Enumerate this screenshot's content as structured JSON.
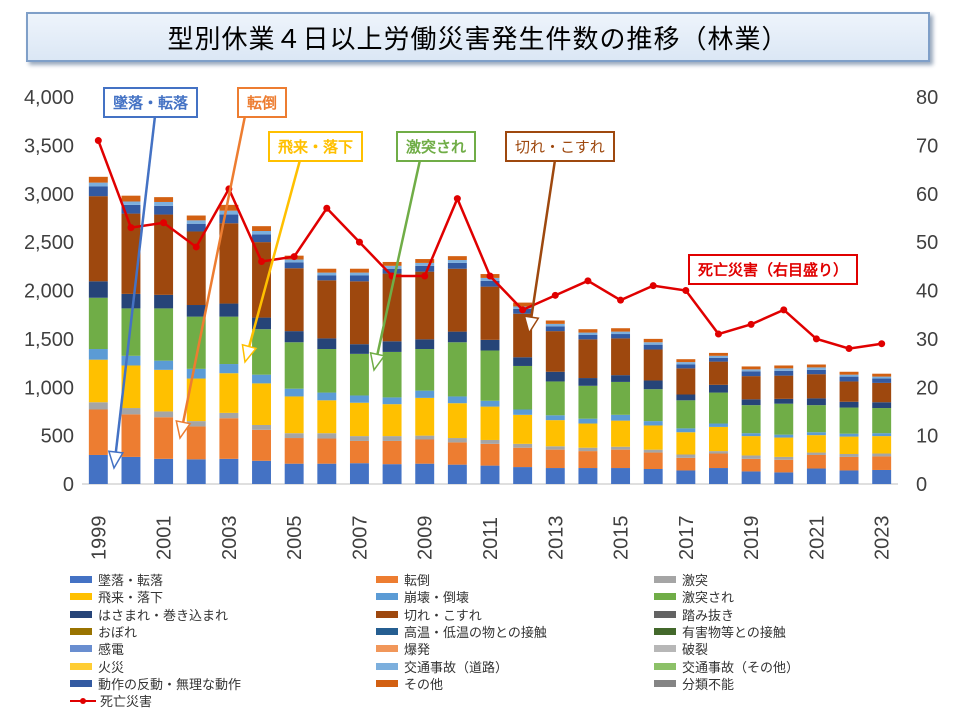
{
  "title": "型別休業４日以上労働災害発生件数の推移（林業）",
  "callouts": {
    "fall": "墜落・転落",
    "tumble": "転倒",
    "flying": "飛来・落下",
    "collision": "激突され",
    "cut": "切れ・こすれ",
    "fatal": "死亡災害（右目盛り）"
  },
  "colors": {
    "fall": "#4472c4",
    "tumble": "#ed7d31",
    "collide": "#a5a5a5",
    "flying": "#ffc000",
    "collapse": "#5b9bd5",
    "struck": "#70ad47",
    "caught": "#264478",
    "cut": "#9e480e",
    "stepon": "#636363",
    "drown": "#997300",
    "temp": "#255e91",
    "harmful": "#43682b",
    "electric": "#698ed0",
    "explosion": "#f1975a",
    "rupture": "#b7b7b7",
    "fire": "#ffcd33",
    "traffic_road": "#7cafdd",
    "traffic_other": "#8cc168",
    "reaction": "#335aa1",
    "other": "#d26012",
    "unclassified": "#848484",
    "fatal": "#e00000"
  },
  "legend": [
    {
      "key": "fall",
      "label": "墜落・転落"
    },
    {
      "key": "tumble",
      "label": "転倒"
    },
    {
      "key": "collide",
      "label": "激突"
    },
    {
      "key": "flying",
      "label": "飛来・落下"
    },
    {
      "key": "collapse",
      "label": "崩壊・倒壊"
    },
    {
      "key": "struck",
      "label": "激突され"
    },
    {
      "key": "caught",
      "label": "はさまれ・巻き込まれ"
    },
    {
      "key": "cut",
      "label": "切れ・こすれ"
    },
    {
      "key": "stepon",
      "label": "踏み抜き"
    },
    {
      "key": "drown",
      "label": "おぼれ"
    },
    {
      "key": "temp",
      "label": "高温・低温の物との接触"
    },
    {
      "key": "harmful",
      "label": "有害物等との接触"
    },
    {
      "key": "electric",
      "label": "感電"
    },
    {
      "key": "explosion",
      "label": "爆発"
    },
    {
      "key": "rupture",
      "label": "破裂"
    },
    {
      "key": "fire",
      "label": "火災"
    },
    {
      "key": "traffic_road",
      "label": "交通事故（道路）"
    },
    {
      "key": "traffic_other",
      "label": "交通事故（その他）"
    },
    {
      "key": "reaction",
      "label": "動作の反動・無理な動作"
    },
    {
      "key": "other",
      "label": "その他"
    },
    {
      "key": "unclassified",
      "label": "分類不能"
    },
    {
      "key": "fatal",
      "label": "死亡災害",
      "type": "line"
    }
  ],
  "chart_data": {
    "type": "bar",
    "stacked": true,
    "title": "型別休業４日以上労働災害発生件数の推移（林業）",
    "categories": [
      "1999",
      "2000",
      "2001",
      "2002",
      "2003",
      "2004",
      "2005",
      "2006",
      "2007",
      "2008",
      "2009",
      "2010",
      "2011",
      "2012",
      "2013",
      "2014",
      "2015",
      "2016",
      "2017",
      "2018",
      "2019",
      "2020",
      "2021",
      "2022",
      "2023"
    ],
    "x_tick_labels": [
      "1999",
      "2001",
      "2003",
      "2005",
      "2007",
      "2009",
      "2011",
      "2013",
      "2015",
      "2017",
      "2019",
      "2021",
      "2023"
    ],
    "ylim_left": [
      0,
      4000
    ],
    "yticks_left": [
      "0",
      "500",
      "1,000",
      "1,500",
      "2,000",
      "2,500",
      "3,000",
      "3,500",
      "4,000"
    ],
    "ylim_right": [
      0,
      80
    ],
    "yticks_right": [
      "0",
      "10",
      "20",
      "30",
      "40",
      "50",
      "60",
      "70",
      "80"
    ],
    "grid": false,
    "series": [
      {
        "key": "fall",
        "name": "墜落・転落",
        "values": [
          300,
          280,
          260,
          255,
          260,
          240,
          210,
          210,
          215,
          205,
          210,
          200,
          190,
          175,
          165,
          165,
          165,
          155,
          140,
          165,
          130,
          120,
          160,
          140,
          145
        ]
      },
      {
        "key": "tumble",
        "name": "転倒",
        "values": [
          470,
          440,
          430,
          340,
          420,
          320,
          265,
          260,
          230,
          240,
          250,
          230,
          225,
          200,
          190,
          175,
          190,
          170,
          130,
          150,
          130,
          130,
          140,
          140,
          140
        ]
      },
      {
        "key": "collide",
        "name": "激突",
        "values": [
          75,
          65,
          60,
          55,
          55,
          50,
          50,
          55,
          50,
          50,
          40,
          45,
          40,
          40,
          35,
          35,
          30,
          30,
          35,
          25,
          35,
          30,
          25,
          30,
          30
        ]
      },
      {
        "key": "flying",
        "name": "飛来・落下",
        "values": [
          440,
          440,
          430,
          440,
          410,
          430,
          380,
          340,
          345,
          330,
          390,
          360,
          345,
          300,
          270,
          250,
          270,
          250,
          230,
          250,
          200,
          200,
          180,
          180,
          180
        ]
      },
      {
        "key": "collapse",
        "name": "崩壊・倒壊",
        "values": [
          110,
          100,
          95,
          100,
          95,
          90,
          80,
          80,
          75,
          70,
          75,
          70,
          60,
          55,
          50,
          50,
          60,
          45,
          40,
          35,
          30,
          30,
          30,
          30,
          30
        ]
      },
      {
        "key": "struck",
        "name": "激突され",
        "values": [
          530,
          490,
          540,
          540,
          490,
          470,
          480,
          450,
          430,
          470,
          430,
          560,
          520,
          450,
          350,
          340,
          340,
          330,
          290,
          320,
          290,
          320,
          280,
          270,
          260
        ]
      },
      {
        "key": "caught",
        "name": "はさまれ・巻き込まれ",
        "values": [
          170,
          150,
          140,
          120,
          135,
          120,
          115,
          110,
          100,
          110,
          100,
          110,
          110,
          90,
          100,
          80,
          70,
          90,
          60,
          80,
          60,
          50,
          70,
          60,
          60
        ]
      },
      {
        "key": "cut",
        "name": "切れ・こすれ",
        "values": [
          880,
          830,
          830,
          760,
          830,
          780,
          650,
          600,
          650,
          700,
          700,
          650,
          550,
          450,
          420,
          400,
          380,
          320,
          270,
          240,
          240,
          240,
          250,
          210,
          200
        ]
      },
      {
        "key": "reaction",
        "name": "動作の反動・無理な動作",
        "values": [
          100,
          90,
          90,
          80,
          90,
          80,
          60,
          50,
          60,
          50,
          60,
          60,
          60,
          50,
          50,
          45,
          45,
          50,
          40,
          40,
          50,
          50,
          45,
          50,
          45
        ]
      },
      {
        "key": "collapse2",
        "name": "崩壊・倒壊",
        "color_key": "traffic_road",
        "values": [
          40,
          35,
          40,
          35,
          40,
          35,
          30,
          30,
          30,
          30,
          30,
          30,
          30,
          25,
          25,
          25,
          25,
          25,
          25,
          20,
          20,
          25,
          25,
          20,
          20
        ]
      },
      {
        "key": "other",
        "name": "その他",
        "values": [
          60,
          60,
          50,
          50,
          60,
          50,
          40,
          40,
          40,
          40,
          40,
          40,
          40,
          40,
          35,
          35,
          35,
          35,
          30,
          30,
          30,
          30,
          30,
          30,
          30
        ]
      }
    ],
    "line_series": {
      "key": "fatal",
      "name": "死亡災害",
      "axis": "right",
      "values": [
        71,
        53,
        54,
        49,
        61,
        46,
        47,
        57,
        50,
        43,
        43,
        59,
        43,
        36,
        39,
        42,
        38,
        41,
        40,
        31,
        33,
        36,
        30,
        28,
        29
      ]
    }
  }
}
